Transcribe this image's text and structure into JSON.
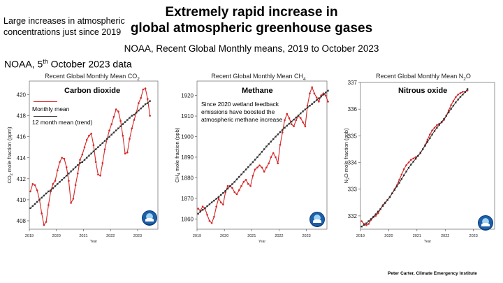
{
  "header": {
    "title_line1": "Extremely rapid increase in",
    "title_line2": "global atmospheric greenhouse gases",
    "side_note": "Large increases in atmospheric concentrations just since 2019",
    "subtitle": "NOAA, Recent Global Monthly means, 2019 to October 2023",
    "source_prefix": "NOAA, 5",
    "source_sup": "th",
    "source_suffix": " October 2023 data",
    "credit": "Peter Carter, Climate Emergency Institute"
  },
  "colors": {
    "monthly": "#d62728",
    "trend": "#333333"
  },
  "chart_data": [
    {
      "type": "line",
      "title_prefix": "Recent Global Monthly Mean CO",
      "title_sub": "2",
      "label": "Carbon dioxide",
      "ylabel_prefix": "CO",
      "ylabel_sub": "2",
      "ylabel_suffix": " mole fraction (ppm)",
      "xlabel": "Year",
      "xlim": [
        2019.0,
        2023.75
      ],
      "ylim": [
        407.2,
        421.3
      ],
      "xticks": [
        2019,
        2020,
        2021,
        2022,
        2023
      ],
      "yticks": [
        408,
        410,
        412,
        414,
        416,
        418,
        420
      ],
      "legend": {
        "monthly": "Monthly mean",
        "trend": "12 month mean (trend)"
      },
      "series": [
        {
          "name": "Monthly mean",
          "x_start": 2019.04,
          "x_step": 0.0833,
          "values": [
            410.8,
            411.5,
            411.4,
            410.9,
            410.0,
            408.7,
            407.6,
            407.9,
            409.5,
            410.8,
            411.5,
            411.8,
            412.8,
            413.6,
            414.0,
            413.9,
            413.1,
            411.8,
            409.7,
            410.1,
            411.4,
            412.5,
            413.8,
            414.3,
            415.0,
            415.7,
            416.1,
            416.3,
            415.2,
            413.6,
            412.4,
            412.3,
            413.5,
            414.8,
            415.8,
            416.6,
            417.2,
            417.9,
            418.6,
            418.4,
            417.5,
            416.1,
            414.4,
            414.5,
            415.8,
            416.8,
            417.6,
            418.3,
            419.2,
            419.7,
            420.5,
            420.6,
            419.6,
            418.0
          ]
        },
        {
          "name": "12 month mean (trend)",
          "x_start": 2019.04,
          "x_step": 0.0833,
          "values": [
            409.2,
            409.4,
            409.6,
            409.8,
            410.0,
            410.2,
            410.4,
            410.6,
            410.8,
            410.9,
            411.1,
            411.3,
            411.5,
            411.7,
            411.9,
            412.1,
            412.3,
            412.5,
            412.7,
            412.9,
            413.1,
            413.3,
            413.5,
            413.6,
            413.8,
            414.0,
            414.2,
            414.4,
            414.6,
            414.8,
            415.0,
            415.2,
            415.4,
            415.6,
            415.8,
            416.0,
            416.2,
            416.4,
            416.6,
            416.8,
            417.0,
            417.2,
            417.4,
            417.6,
            417.8,
            418.0,
            418.1,
            418.3,
            418.5,
            418.7,
            418.9,
            419.1,
            419.2,
            419.4
          ]
        }
      ]
    },
    {
      "type": "line",
      "title_prefix": "Recent Global Monthly Mean CH",
      "title_sub": "4",
      "label": "Methane",
      "annotation": "Since 2020 wetland feedback emissions have boosted the atmospheric methane increase",
      "ylabel_prefix": "CH",
      "ylabel_sub": "4",
      "ylabel_suffix": " mole fraction (ppb)",
      "xlabel": "Year",
      "xlim": [
        2019.0,
        2023.75
      ],
      "ylim": [
        1855,
        1927
      ],
      "xticks": [
        2019,
        2020,
        2021,
        2022,
        2023
      ],
      "yticks": [
        1860,
        1870,
        1880,
        1890,
        1900,
        1910,
        1920
      ],
      "series": [
        {
          "name": "Monthly mean",
          "x_start": 2019.04,
          "x_step": 0.0833,
          "values": [
            1865,
            1864,
            1866,
            1865,
            1862,
            1859,
            1858,
            1861,
            1866,
            1870,
            1868,
            1867,
            1873,
            1876,
            1876,
            1875,
            1873,
            1872,
            1874,
            1876,
            1878,
            1879,
            1877,
            1876,
            1881,
            1884,
            1885,
            1886,
            1885,
            1883,
            1885,
            1887,
            1890,
            1892,
            1890,
            1887,
            1896,
            1902,
            1908,
            1911,
            1909,
            1906,
            1905,
            1908,
            1910,
            1909,
            1907,
            1905,
            1915,
            1921,
            1924,
            1921,
            1919,
            1917,
            1920,
            1921,
            1920,
            1917
          ]
        },
        {
          "name": "12 month mean (trend)",
          "x_start": 2019.04,
          "x_step": 0.0833,
          "values": [
            1862.5,
            1863.5,
            1864.4,
            1865.3,
            1866.2,
            1867.1,
            1868.0,
            1868.9,
            1869.8,
            1870.7,
            1871.6,
            1872.6,
            1873.6,
            1874.7,
            1875.8,
            1876.9,
            1878.0,
            1879.2,
            1880.4,
            1881.6,
            1882.8,
            1884.0,
            1885.2,
            1886.4,
            1887.6,
            1888.8,
            1890.0,
            1891.3,
            1892.6,
            1893.9,
            1895.2,
            1896.4,
            1897.6,
            1898.8,
            1900.0,
            1901.1,
            1902.2,
            1903.3,
            1904.3,
            1905.3,
            1906.3,
            1907.3,
            1908.3,
            1909.3,
            1910.3,
            1911.3,
            1912.3,
            1913.2,
            1914.1,
            1915.0,
            1915.9,
            1916.8,
            1917.7,
            1918.6,
            1919.5,
            1920.4,
            1921.4,
            1922.3
          ]
        }
      ]
    },
    {
      "type": "line",
      "title_prefix": "Recent Global Monthly Mean N",
      "title_sub": "2",
      "title_suffix": "O",
      "label": "Nitrous oxide",
      "ylabel_prefix": "N",
      "ylabel_sub": "2",
      "ylabel_suffix": "O mole fraction (ppb)",
      "xlabel": "Year",
      "xlim": [
        2019.0,
        2023.75
      ],
      "ylim": [
        331.5,
        337.0
      ],
      "xticks": [
        2019,
        2020,
        2021,
        2022,
        2023
      ],
      "yticks": [
        332,
        333,
        334,
        335,
        336,
        337
      ],
      "series": [
        {
          "name": "Monthly mean",
          "x_start": 2019.04,
          "x_step": 0.0833,
          "values": [
            331.8,
            331.7,
            331.65,
            331.7,
            331.85,
            331.95,
            332.0,
            332.1,
            332.25,
            332.4,
            332.5,
            332.6,
            332.7,
            332.85,
            333.0,
            333.15,
            333.35,
            333.55,
            333.75,
            333.9,
            334.0,
            334.1,
            334.15,
            334.2,
            334.25,
            334.35,
            334.5,
            334.65,
            334.85,
            335.05,
            335.2,
            335.3,
            335.4,
            335.45,
            335.5,
            335.6,
            335.75,
            335.95,
            336.15,
            336.3,
            336.45,
            336.55,
            336.6,
            336.65,
            336.65,
            336.7
          ]
        },
        {
          "name": "12 month mean (trend)",
          "x_start": 2019.04,
          "x_step": 0.0833,
          "values": [
            331.6,
            331.66,
            331.72,
            331.8,
            331.88,
            331.97,
            332.06,
            332.16,
            332.26,
            332.37,
            332.48,
            332.59,
            332.71,
            332.84,
            332.97,
            333.1,
            333.24,
            333.38,
            333.52,
            333.66,
            333.8,
            333.92,
            334.03,
            334.14,
            334.25,
            334.37,
            334.5,
            334.63,
            334.77,
            334.91,
            335.05,
            335.18,
            335.3,
            335.41,
            335.52,
            335.63,
            335.75,
            335.88,
            336.01,
            336.13,
            336.25,
            336.36,
            336.46,
            336.55,
            336.64,
            336.75
          ]
        }
      ]
    }
  ]
}
